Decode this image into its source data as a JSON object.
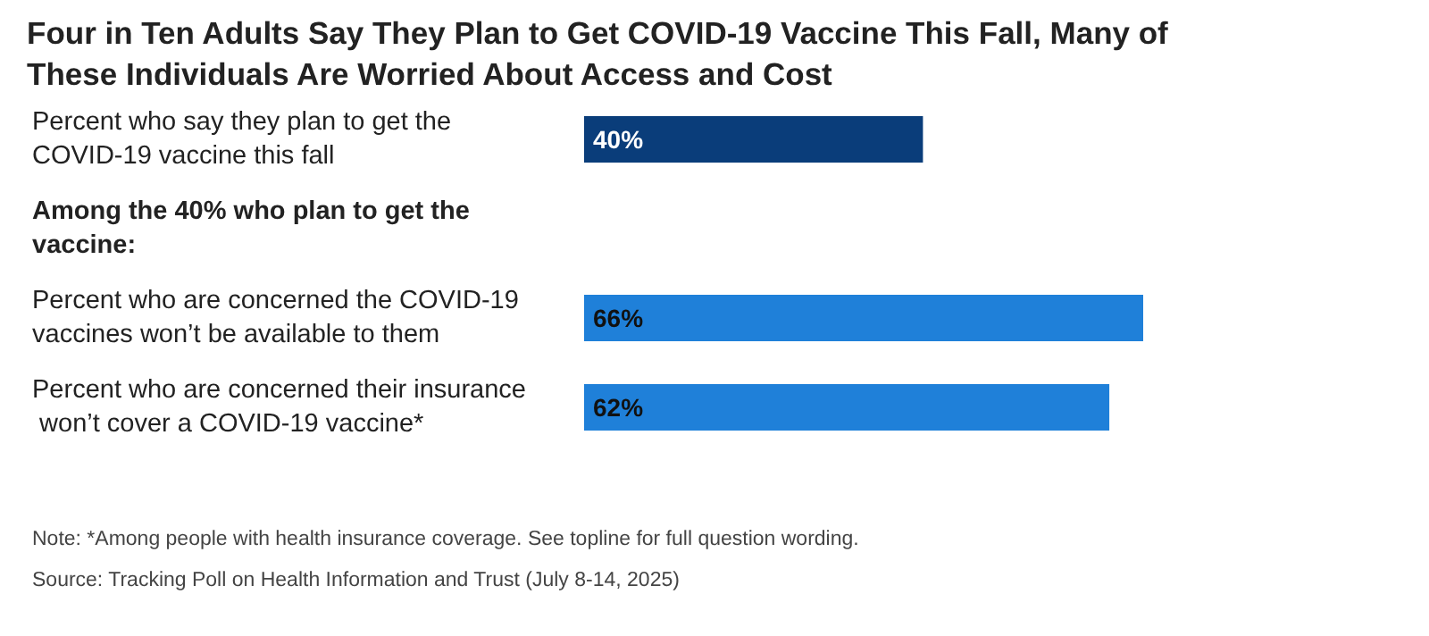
{
  "chart_data": {
    "type": "bar",
    "orientation": "horizontal",
    "title": "Four in Ten Adults Say They Plan to Get COVID-19 Vaccine This Fall, Many of These Individuals Are Worried About Access and Cost",
    "categories": [
      "Percent who say they plan to get the COVID-19 vaccine this fall",
      null,
      "Percent who are concerned the COVID-19 vaccines won’t be available to them",
      "Percent who are concerned their insurance won’t cover a COVID-19 vaccine*"
    ],
    "values": [
      40,
      null,
      66,
      62
    ],
    "colors": [
      "#0a3d7a",
      null,
      "#1f80d9",
      "#1f80d9"
    ],
    "value_labels": [
      "40%",
      null,
      "66%",
      "62%"
    ],
    "annotations": [
      "Among the 40% who plan to get the vaccine:",
      "Note: *Among people with health insurance coverage. See topline for full question wording.",
      "Source: Tracking Poll on Health Information and Trust (July 8-14, 2025)"
    ]
  }
}
